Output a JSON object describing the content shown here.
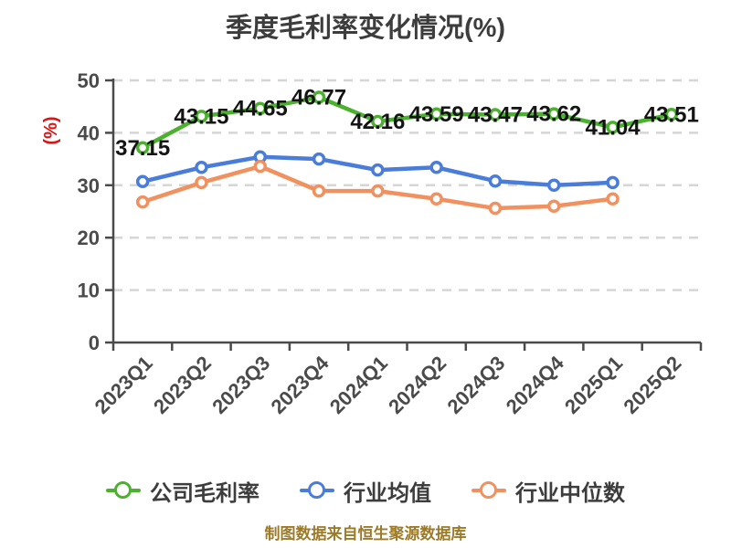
{
  "chart_data": {
    "type": "line",
    "title": "季度毛利率变化情况(%)",
    "ylabel": "(%)",
    "footer": "制图数据来自恒生聚源数据库",
    "ylim": [
      0,
      50
    ],
    "yticks": [
      0,
      10,
      20,
      30,
      40,
      50
    ],
    "grid": "horizontal-dashed",
    "legend_position": "bottom",
    "categories": [
      "2023Q1",
      "2023Q2",
      "2023Q3",
      "2023Q4",
      "2024Q1",
      "2024Q2",
      "2024Q3",
      "2024Q4",
      "2025Q1",
      "2025Q2"
    ],
    "series": [
      {
        "name": "公司毛利率",
        "key": "company-gross-margin",
        "color": "#4cb12e",
        "show_labels": true,
        "values": [
          37.15,
          43.15,
          44.65,
          46.77,
          42.16,
          43.59,
          43.47,
          43.62,
          41.04,
          43.51
        ]
      },
      {
        "name": "行业均值",
        "key": "industry-mean",
        "color": "#4a7dda",
        "show_labels": false,
        "values": [
          30.7,
          33.4,
          35.4,
          35.0,
          32.9,
          33.4,
          30.8,
          30.0,
          30.5
        ]
      },
      {
        "name": "行业中位数",
        "key": "industry-median",
        "color": "#f0915f",
        "show_labels": false,
        "values": [
          26.8,
          30.5,
          33.6,
          28.9,
          28.9,
          27.4,
          25.6,
          26.0,
          27.4
        ]
      }
    ],
    "colors": {
      "title": "#3d3d3d",
      "axis": "#4a4a4a",
      "tick_label": "#4a4a4a",
      "gridline": "#d6d6d6",
      "data_label": "#141414",
      "y_unit_label": "#e01212",
      "legend_text": "#3d3d3d",
      "footer_text": "#9c7a28",
      "point_fill": "#ffffff",
      "background": "#ffffff"
    }
  }
}
